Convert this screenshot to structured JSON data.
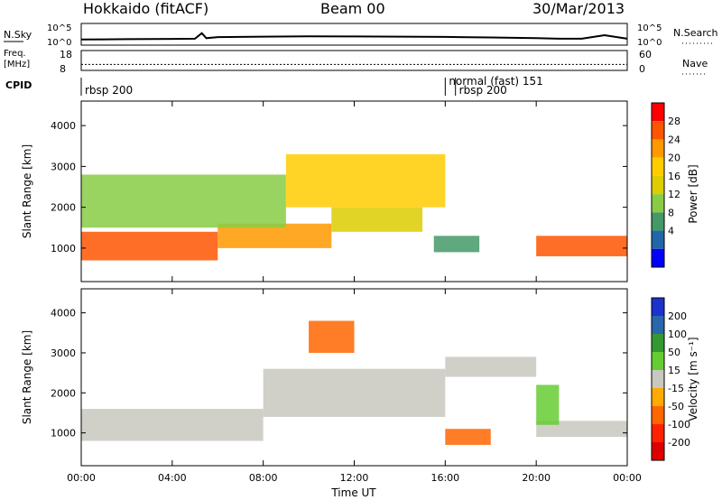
{
  "header": {
    "title_left": "Hokkaido (fitACF)",
    "title_center": "Beam 00",
    "title_right": "30/Mar/2013"
  },
  "noise_panel": {
    "left_label": "N.Sky",
    "right_label": "N.Search",
    "left_ticks": [
      "10^5",
      "10^0"
    ],
    "right_ticks": [
      "10^5",
      "10^0"
    ]
  },
  "freq_panel": {
    "left_label_1": "Freq.",
    "left_label_2": "[MHz]",
    "right_label": "Nave",
    "left_ticks": [
      "18",
      "8"
    ],
    "right_ticks": [
      "60",
      "0"
    ]
  },
  "cpid_panel": {
    "label": "CPID",
    "entries": [
      "rbsp 200",
      "normal (fast) 151",
      "rbsp 200"
    ],
    "entry_times_hours": [
      0.0,
      16.0,
      16.45
    ]
  },
  "power_colorbar": {
    "label": "Power [dB]",
    "ticks": [
      "28",
      "24",
      "20",
      "16",
      "12",
      "8",
      "4"
    ],
    "colors": [
      "#ff0000",
      "#ff5500",
      "#ff9900",
      "#ffcc00",
      "#ddcc00",
      "#88cc44",
      "#449966",
      "#2266aa",
      "#0000ff"
    ]
  },
  "velocity_colorbar": {
    "label": "Velocity [m s⁻¹]",
    "ticks": [
      "200",
      "100",
      "50",
      "15",
      "-15",
      "-50",
      "-100",
      "-200"
    ],
    "colors": [
      "#1a33cc",
      "#2a66aa",
      "#339933",
      "#66cc33",
      "#c8c8c0",
      "#ffaa00",
      "#ff6600",
      "#ff2200",
      "#dd0000"
    ]
  },
  "chart_data": [
    {
      "type": "line",
      "title": "N.Sky",
      "y_scale": "log",
      "ylim": [
        1,
        100000
      ],
      "x": [
        0,
        1,
        2,
        3,
        4,
        5,
        5.3,
        5.5,
        6,
        8,
        10,
        12,
        14,
        16,
        18,
        20,
        21,
        22,
        23,
        24
      ],
      "series": [
        {
          "values": [
            20,
            22,
            24,
            26,
            28,
            30,
            600,
            40,
            70,
            90,
            110,
            100,
            90,
            80,
            60,
            40,
            30,
            30,
            200,
            30
          ]
        }
      ]
    },
    {
      "type": "scatter",
      "title": "Freq. / Nave",
      "y_label": "[MHz]",
      "ylim": [
        8,
        18
      ],
      "x": [
        0,
        24
      ],
      "series": [
        {
          "values": [
            11,
            11
          ]
        }
      ]
    },
    {
      "type": "heatmap",
      "title": "Power",
      "x_label": "Time UT",
      "y_label": "Slant Range [km]",
      "x_ticks": [
        "00:00",
        "04:00",
        "08:00",
        "12:00",
        "16:00",
        "20:00",
        "00:00"
      ],
      "y_ticks": [
        "1000",
        "2000",
        "3000",
        "4000"
      ],
      "xlim_hours": [
        0,
        24
      ],
      "ylim_km": [
        180,
        4600
      ],
      "colorbar_label": "Power [dB]",
      "bands": [
        {
          "t": [
            0,
            6
          ],
          "r": [
            700,
            1400
          ],
          "value": 26
        },
        {
          "t": [
            6,
            11
          ],
          "r": [
            1000,
            1600
          ],
          "value": 22
        },
        {
          "t": [
            11,
            15
          ],
          "r": [
            1400,
            2000
          ],
          "value": 14
        },
        {
          "t": [
            20,
            24
          ],
          "r": [
            800,
            1300
          ],
          "value": 24
        },
        {
          "t": [
            0,
            9
          ],
          "r": [
            1500,
            2800
          ],
          "value": 8
        },
        {
          "t": [
            9,
            16
          ],
          "r": [
            2000,
            3300
          ],
          "value": 16
        },
        {
          "t": [
            15.5,
            17.5
          ],
          "r": [
            900,
            1300
          ],
          "value": 6
        }
      ]
    },
    {
      "type": "heatmap",
      "title": "Velocity",
      "x_label": "Time UT",
      "y_label": "Slant Range [km]",
      "x_ticks": [
        "00:00",
        "04:00",
        "08:00",
        "12:00",
        "16:00",
        "20:00",
        "00:00"
      ],
      "y_ticks": [
        "1000",
        "2000",
        "3000",
        "4000"
      ],
      "xlim_hours": [
        0,
        24
      ],
      "ylim_km": [
        180,
        4600
      ],
      "colorbar_label": "Velocity [m s⁻¹]",
      "bands": [
        {
          "t": [
            0,
            8
          ],
          "r": [
            800,
            1600
          ],
          "value": 0
        },
        {
          "t": [
            8,
            16
          ],
          "r": [
            1400,
            2600
          ],
          "value": 0
        },
        {
          "t": [
            16,
            20
          ],
          "r": [
            2400,
            2900
          ],
          "value": 0
        },
        {
          "t": [
            20,
            24
          ],
          "r": [
            900,
            1300
          ],
          "value": 0
        },
        {
          "t": [
            10,
            12
          ],
          "r": [
            3000,
            3800
          ],
          "value": -60
        },
        {
          "t": [
            16,
            18
          ],
          "r": [
            700,
            1100
          ],
          "value": -70
        },
        {
          "t": [
            20,
            21
          ],
          "r": [
            1200,
            2200
          ],
          "value": 40
        }
      ]
    }
  ]
}
